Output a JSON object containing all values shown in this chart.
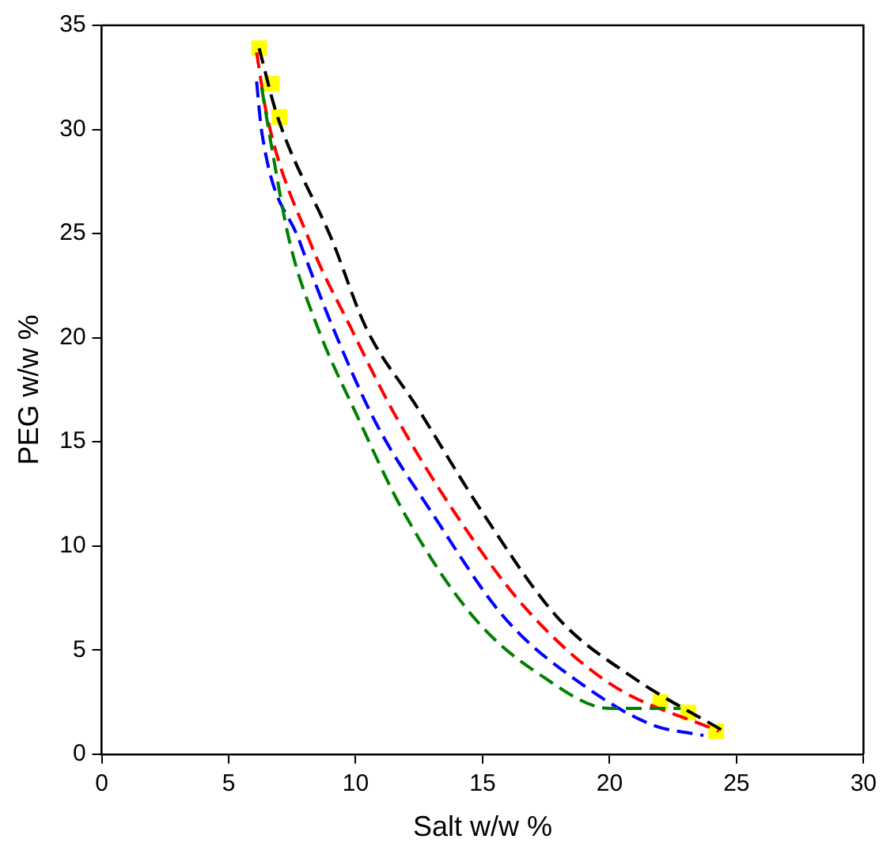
{
  "chart_data": {
    "type": "line",
    "xlabel": "Salt w/w %",
    "ylabel": "PEG w/w %",
    "xlim": [
      0,
      30
    ],
    "xticks": [
      0,
      5,
      10,
      15,
      20,
      25,
      30
    ],
    "ylim": [
      0,
      35
    ],
    "yticks": [
      0,
      5,
      10,
      15,
      20,
      25,
      30,
      35
    ],
    "grid": false,
    "legend": false,
    "line_style": "dashed",
    "marker": "none",
    "series": [
      {
        "type": "scatter",
        "color": "#ffff00",
        "marker": "square",
        "x": [
          6.2,
          6.7,
          7.0,
          22.0,
          23.1,
          24.2
        ],
        "values": [
          33.9,
          32.2,
          30.6,
          2.5,
          2.0,
          1.1
        ]
      },
      {
        "color": "#000000",
        "x": [
          6.2,
          6.9,
          9.1,
          10.4,
          12.4,
          15.0,
          18.0,
          20.9,
          24.5
        ],
        "values": [
          33.9,
          30.7,
          24.6,
          20.5,
          16.7,
          11.6,
          6.5,
          3.7,
          1.1
        ]
      },
      {
        "color": "#ff0000",
        "x": [
          6.1,
          6.5,
          8.2,
          9.8,
          11.5,
          13.9,
          16.7,
          20.0,
          24.3
        ],
        "values": [
          33.7,
          30.7,
          24.6,
          20.5,
          16.4,
          11.6,
          7.0,
          3.4,
          1.1
        ]
      },
      {
        "color": "#0000ff",
        "x": [
          6.1,
          6.3,
          7.8,
          9.1,
          10.8,
          13.0,
          15.9,
          19.1,
          21.7,
          23.7
        ],
        "values": [
          32.3,
          29.9,
          24.6,
          20.5,
          15.9,
          11.6,
          6.5,
          3.2,
          1.4,
          0.9
        ]
      },
      {
        "color": "#008000",
        "x": [
          6.3,
          6.7,
          7.4,
          8.5,
          10.0,
          11.9,
          14.7,
          17.4,
          20.0,
          22.8
        ],
        "values": [
          32.0,
          29.1,
          24.6,
          20.5,
          16.4,
          11.6,
          6.5,
          3.7,
          2.2,
          2.2
        ]
      }
    ]
  }
}
